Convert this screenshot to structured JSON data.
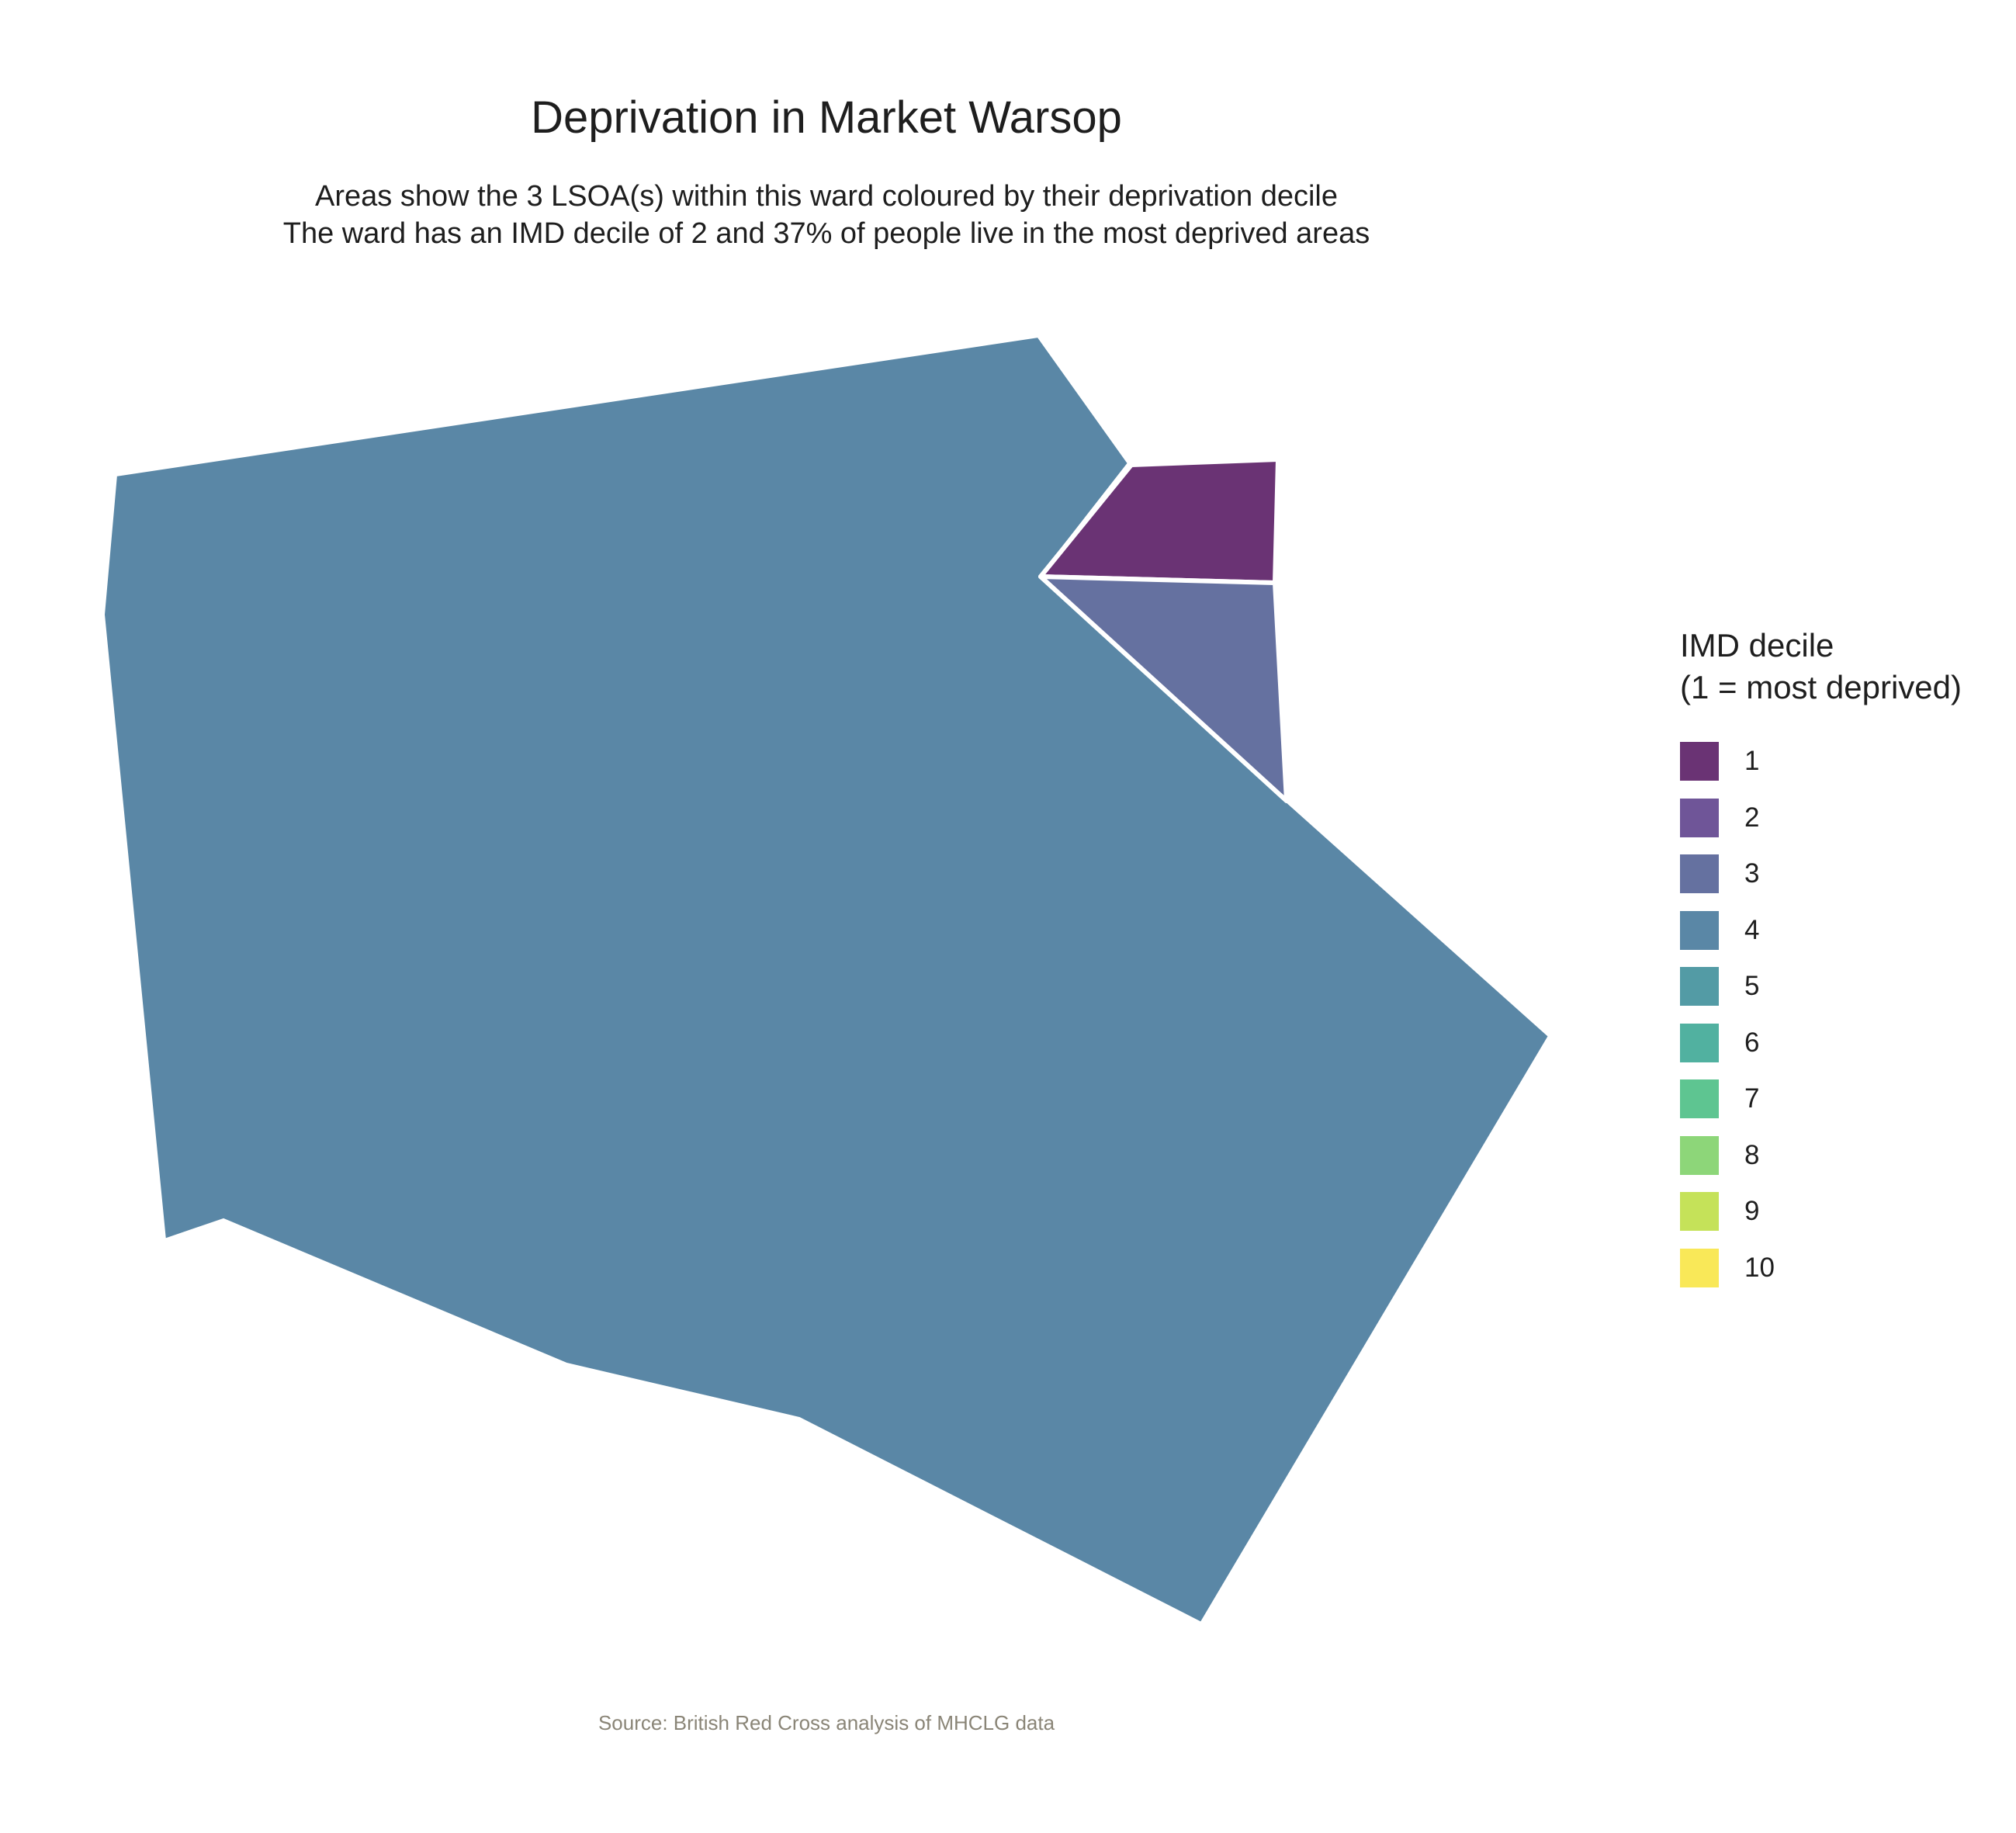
{
  "title": "Deprivation in Market Warsop",
  "subtitle_line1": "Areas show the 3 LSOA(s) within this ward coloured by their deprivation decile",
  "subtitle_line2": "The ward has an IMD decile of 2 and 37% of people live in the most deprived areas",
  "caption": "Source: British Red Cross analysis of MHCLG data",
  "legend": {
    "title_line1": "IMD decile",
    "title_line2": "(1 = most deprived)",
    "items": [
      {
        "label": "1",
        "color": "#6a3374"
      },
      {
        "label": "2",
        "color": "#6f5598"
      },
      {
        "label": "3",
        "color": "#6571a0"
      },
      {
        "label": "4",
        "color": "#5a87a6"
      },
      {
        "label": "5",
        "color": "#539ba5"
      },
      {
        "label": "6",
        "color": "#51b1a0"
      },
      {
        "label": "7",
        "color": "#5ec591"
      },
      {
        "label": "8",
        "color": "#8dd679"
      },
      {
        "label": "9",
        "color": "#c5e259"
      },
      {
        "label": "10",
        "color": "#f9e858"
      }
    ]
  },
  "chart_data": {
    "type": "choropleth",
    "areas": [
      {
        "decile": 4,
        "color": "#5a87a6"
      },
      {
        "decile": 1,
        "color": "#6a3374"
      },
      {
        "decile": 3,
        "color": "#6571a0"
      }
    ],
    "border_color": "#ffffff"
  }
}
